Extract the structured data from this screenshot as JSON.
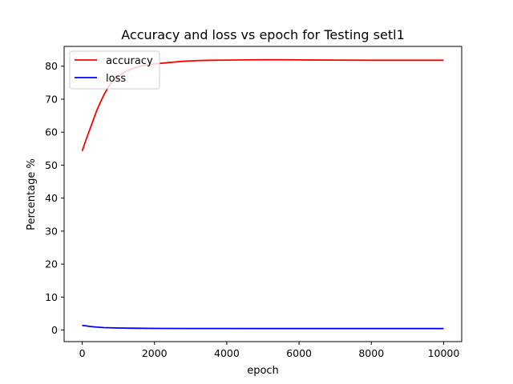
{
  "chart_data": {
    "type": "line",
    "title": "Accuracy and loss vs epoch for Testing setl1",
    "xlabel": "epoch",
    "ylabel": "Percentage %",
    "xlim": [
      -500,
      10500
    ],
    "ylim": [
      -3.5,
      86
    ],
    "xticks": [
      0,
      2000,
      4000,
      6000,
      8000,
      10000
    ],
    "yticks": [
      0,
      10,
      20,
      30,
      40,
      50,
      60,
      70,
      80
    ],
    "grid": false,
    "legend": "top-left",
    "series": [
      {
        "name": "accuracy",
        "color": "#ff0000",
        "x": [
          0,
          100,
          200,
          300,
          400,
          500,
          600,
          700,
          800,
          900,
          1000,
          1200,
          1400,
          1600,
          1800,
          2000,
          2400,
          2800,
          3200,
          3600,
          4000,
          4500,
          5000,
          5500,
          6000,
          7000,
          8000,
          9000,
          10000
        ],
        "y": [
          54.3,
          57.5,
          60.5,
          63.5,
          66.5,
          69.0,
          71.3,
          73.2,
          74.9,
          76.1,
          77.0,
          78.4,
          79.3,
          80.0,
          80.4,
          80.7,
          81.1,
          81.5,
          81.7,
          81.8,
          81.85,
          81.9,
          81.95,
          81.95,
          81.9,
          81.85,
          81.8,
          81.8,
          81.8
        ]
      },
      {
        "name": "loss",
        "color": "#0000ff",
        "x": [
          0,
          100,
          200,
          400,
          600,
          800,
          1000,
          1500,
          2000,
          3000,
          4000,
          5000,
          6000,
          7000,
          8000,
          9000,
          10000
        ],
        "y": [
          1.4,
          1.3,
          1.1,
          0.9,
          0.75,
          0.68,
          0.62,
          0.55,
          0.5,
          0.48,
          0.47,
          0.46,
          0.46,
          0.46,
          0.45,
          0.45,
          0.45
        ]
      }
    ]
  }
}
